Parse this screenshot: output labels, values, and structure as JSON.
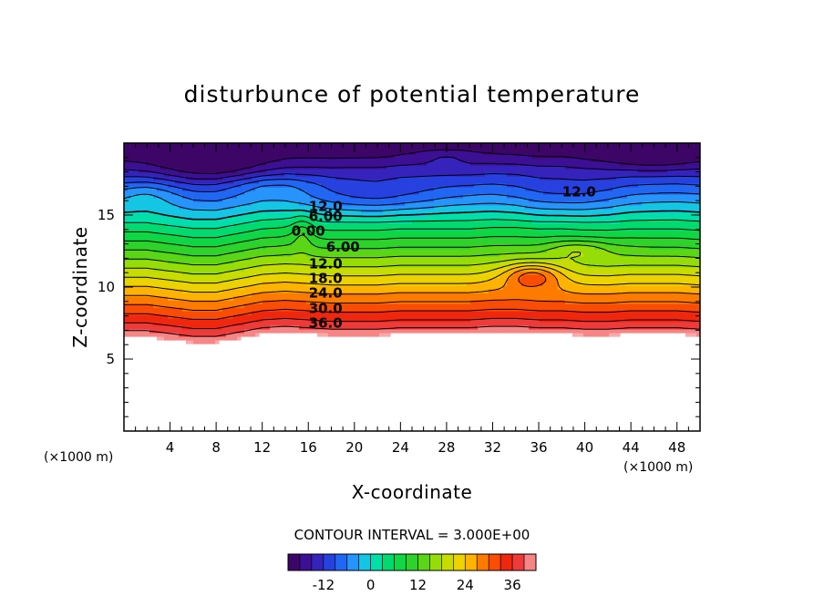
{
  "chart_data": {
    "type": "heatmap",
    "title": "disturbunce of potential temperature",
    "xlabel": "X-coordinate",
    "ylabel": "Z-coordinate",
    "x_unit": "(×1000 m)",
    "z_unit": "(×1000 m)",
    "xlim": [
      0,
      50
    ],
    "ylim": [
      0,
      20
    ],
    "x_ticks": [
      "4",
      "8",
      "12",
      "16",
      "20",
      "24",
      "28",
      "32",
      "36",
      "40",
      "44",
      "48"
    ],
    "y_ticks": [
      "5",
      "10",
      "15"
    ],
    "contour_interval_text": "CONTOUR INTERVAL = 3.000E+00",
    "contour_interval": 3.0,
    "terrain_top_z": [
      6.6,
      6.6,
      6.4,
      6.2,
      6.2,
      6.5,
      6.8,
      6.9,
      6.8,
      6.7,
      6.7,
      6.7,
      6.8,
      6.8,
      6.8,
      6.8,
      6.9,
      6.9,
      6.8,
      6.8,
      6.7,
      6.7,
      6.8,
      6.8,
      6.8,
      6.7
    ],
    "contour_labels": [
      {
        "text": "12.0",
        "x": 17.5,
        "z": 15.6
      },
      {
        "text": "6.00",
        "x": 17.5,
        "z": 14.9
      },
      {
        "text": "0.00",
        "x": 16.0,
        "z": 13.9
      },
      {
        "text": "6.00",
        "x": 19.0,
        "z": 12.8
      },
      {
        "text": "12.0",
        "x": 17.5,
        "z": 11.6
      },
      {
        "text": "18.0",
        "x": 17.5,
        "z": 10.6
      },
      {
        "text": "24.0",
        "x": 17.5,
        "z": 9.6
      },
      {
        "text": "30.0",
        "x": 17.5,
        "z": 8.5
      },
      {
        "text": "36.0",
        "x": 17.5,
        "z": 7.5
      },
      {
        "text": "12.0",
        "x": 39.5,
        "z": 16.6
      }
    ],
    "colorbar": {
      "min": -21,
      "max": 42,
      "ticks": [
        "-12",
        "0",
        "12",
        "24",
        "36"
      ],
      "tick_values": [
        -12,
        0,
        12,
        24,
        36
      ]
    }
  }
}
